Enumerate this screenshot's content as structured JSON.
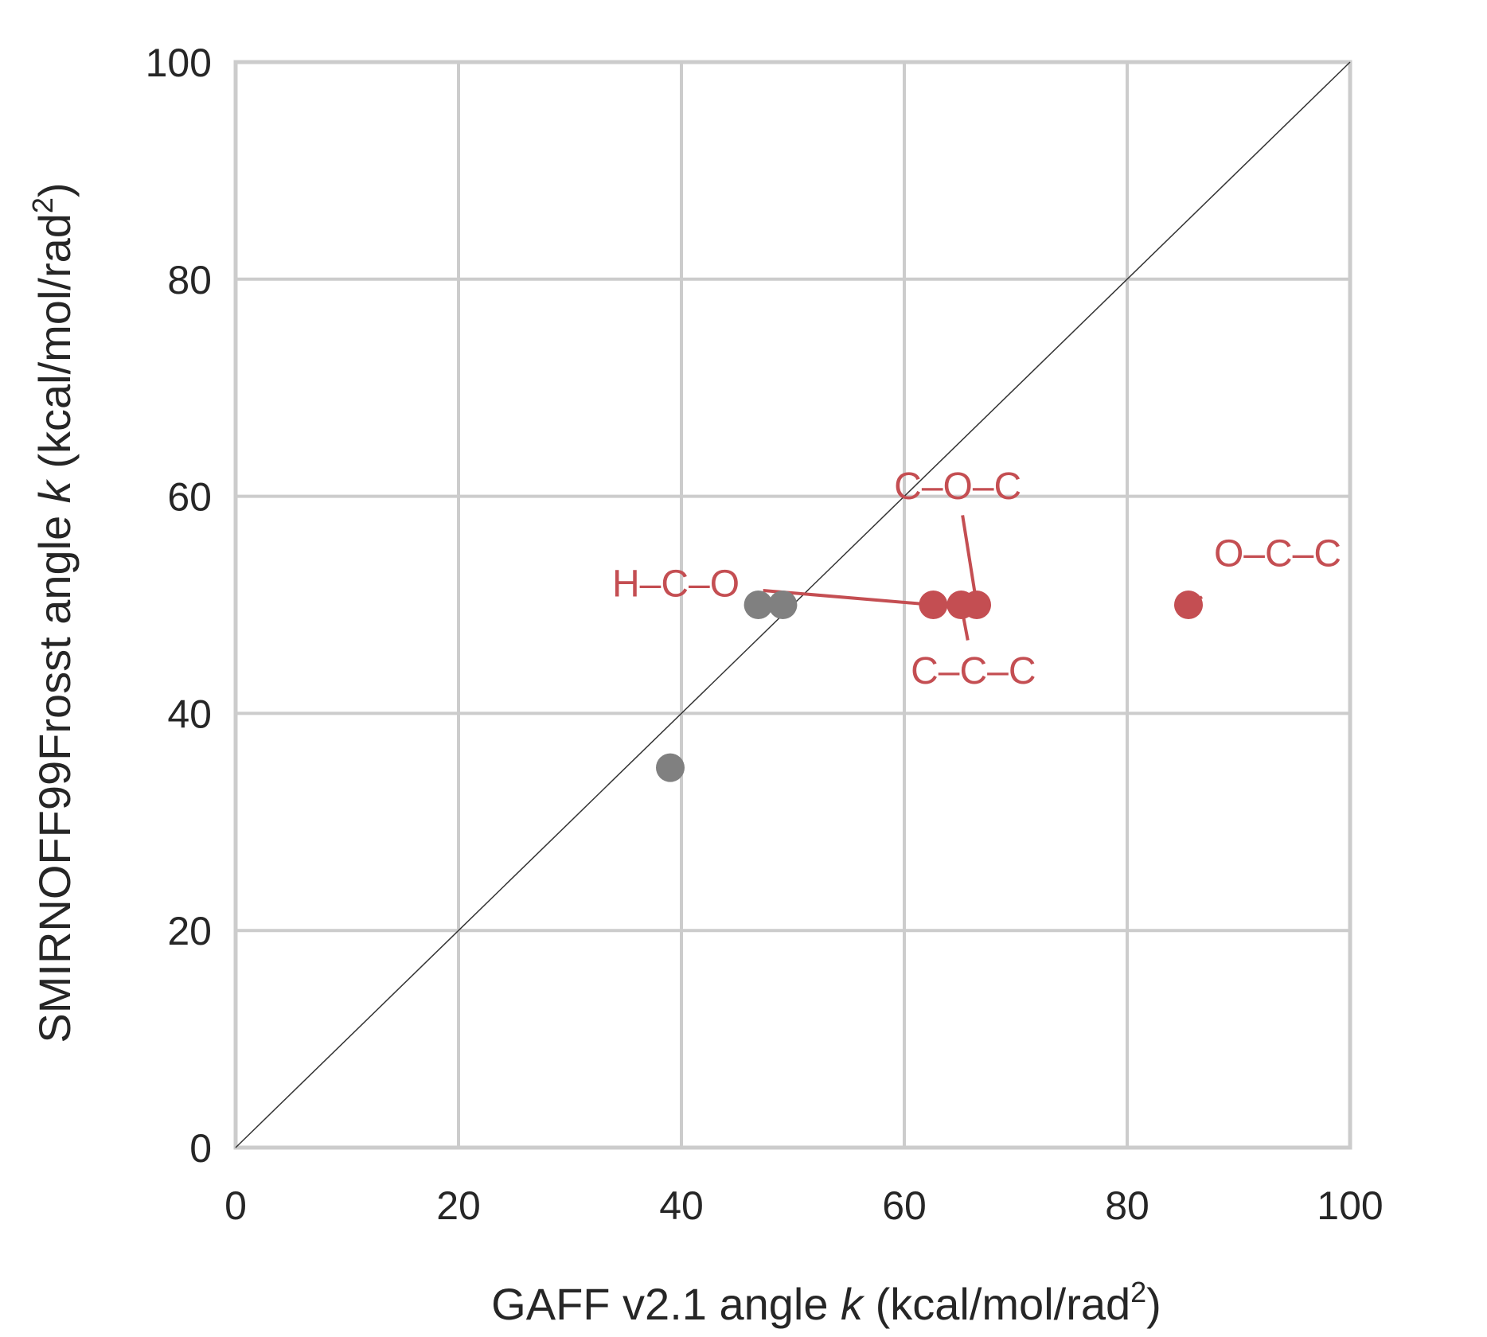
{
  "chart_data": {
    "type": "scatter",
    "title": "",
    "xlabel": {
      "pre": "GAFF v2.1 angle ",
      "var": "k",
      "post": " (kcal/mol/rad",
      "sup": "2",
      "end": ")"
    },
    "ylabel": {
      "pre": "SMIRNOFF99Frosst angle ",
      "var": "k",
      "post": " (kcal/mol/rad",
      "sup": "2",
      "end": ")"
    },
    "xlim": [
      0,
      100
    ],
    "ylim": [
      0,
      100
    ],
    "xticks": [
      "0",
      "20",
      "40",
      "60",
      "80",
      "100"
    ],
    "yticks": [
      "0",
      "20",
      "40",
      "60",
      "80",
      "100"
    ],
    "grid": true,
    "identity_line": true,
    "series": [
      {
        "color": "#808080",
        "points": [
          [
            39.0,
            35.0
          ],
          [
            46.9,
            50.0
          ],
          [
            49.1,
            50.0
          ]
        ]
      },
      {
        "color": "#c44e52",
        "points": [
          {
            "x": 62.6,
            "y": 50.0,
            "label": "H–C–O",
            "label_x": 39.5,
            "label_y": 52.0
          },
          {
            "x": 65.1,
            "y": 50.0,
            "label": "C–C–C",
            "label_x": 66.2,
            "label_y": 44.0
          },
          {
            "x": 66.5,
            "y": 50.0,
            "label": "C–O–C",
            "label_x": 64.8,
            "label_y": 61.0
          },
          {
            "x": 85.5,
            "y": 50.0,
            "label": "O–C–C",
            "label_x": 93.5,
            "label_y": 54.8
          }
        ]
      }
    ]
  }
}
